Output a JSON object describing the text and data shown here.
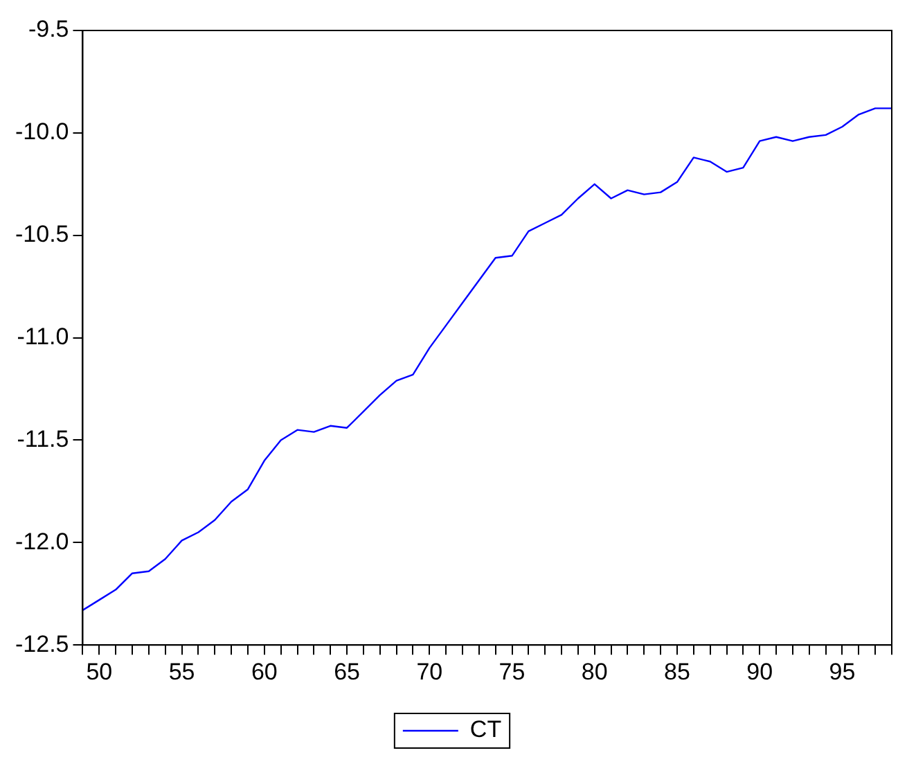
{
  "chart_data": {
    "type": "line",
    "x": [
      49,
      50,
      51,
      52,
      53,
      54,
      55,
      56,
      57,
      58,
      59,
      60,
      61,
      62,
      63,
      64,
      65,
      66,
      67,
      68,
      69,
      70,
      71,
      72,
      73,
      74,
      75,
      76,
      77,
      78,
      79,
      80,
      81,
      82,
      83,
      84,
      85,
      86,
      87,
      88,
      89,
      90,
      91,
      92,
      93,
      94,
      95,
      96,
      97,
      98
    ],
    "series": [
      {
        "name": "CT",
        "color": "#0000ff",
        "values": [
          -12.33,
          -12.28,
          -12.23,
          -12.15,
          -12.14,
          -12.08,
          -11.99,
          -11.95,
          -11.89,
          -11.8,
          -11.74,
          -11.6,
          -11.5,
          -11.45,
          -11.46,
          -11.43,
          -11.44,
          -11.36,
          -11.28,
          -11.21,
          -11.18,
          -11.05,
          -10.94,
          -10.83,
          -10.72,
          -10.61,
          -10.6,
          -10.48,
          -10.44,
          -10.4,
          -10.32,
          -10.25,
          -10.32,
          -10.28,
          -10.3,
          -10.29,
          -10.24,
          -10.12,
          -10.14,
          -10.19,
          -10.17,
          -10.04,
          -10.02,
          -10.04,
          -10.02,
          -10.01,
          -9.97,
          -9.91,
          -9.88,
          -9.88
        ]
      }
    ],
    "xlim": [
      49,
      98
    ],
    "xticks": [
      {
        "value": 49,
        "label": null
      },
      50,
      {
        "value": 51,
        "label": null
      },
      {
        "value": 52,
        "label": null
      },
      {
        "value": 53,
        "label": null
      },
      {
        "value": 54,
        "label": null
      },
      55,
      {
        "value": 56,
        "label": null
      },
      {
        "value": 57,
        "label": null
      },
      {
        "value": 58,
        "label": null
      },
      {
        "value": 59,
        "label": null
      },
      60,
      {
        "value": 61,
        "label": null
      },
      {
        "value": 62,
        "label": null
      },
      {
        "value": 63,
        "label": null
      },
      {
        "value": 64,
        "label": null
      },
      65,
      {
        "value": 66,
        "label": null
      },
      {
        "value": 67,
        "label": null
      },
      {
        "value": 68,
        "label": null
      },
      {
        "value": 69,
        "label": null
      },
      70,
      {
        "value": 71,
        "label": null
      },
      {
        "value": 72,
        "label": null
      },
      {
        "value": 73,
        "label": null
      },
      {
        "value": 74,
        "label": null
      },
      75,
      {
        "value": 76,
        "label": null
      },
      {
        "value": 77,
        "label": null
      },
      {
        "value": 78,
        "label": null
      },
      {
        "value": 79,
        "label": null
      },
      80,
      {
        "value": 81,
        "label": null
      },
      {
        "value": 82,
        "label": null
      },
      {
        "value": 83,
        "label": null
      },
      {
        "value": 84,
        "label": null
      },
      85,
      {
        "value": 86,
        "label": null
      },
      {
        "value": 87,
        "label": null
      },
      {
        "value": 88,
        "label": null
      },
      {
        "value": 89,
        "label": null
      },
      90,
      {
        "value": 91,
        "label": null
      },
      {
        "value": 92,
        "label": null
      },
      {
        "value": 93,
        "label": null
      },
      {
        "value": 94,
        "label": null
      },
      95,
      {
        "value": 96,
        "label": null
      },
      {
        "value": 97,
        "label": null
      },
      {
        "value": 98,
        "label": null
      }
    ],
    "ylim": [
      -12.5,
      -9.5
    ],
    "yticks": [
      -12.5,
      {
        "value": -12,
        "label": "-12.0"
      },
      -11.5,
      {
        "value": -11,
        "label": "-11.0"
      },
      -10.5,
      {
        "value": -10,
        "label": "-10.0"
      },
      -9.5
    ],
    "grid": false,
    "legend": "bottom",
    "marker": "none",
    "line_style": "solid"
  }
}
